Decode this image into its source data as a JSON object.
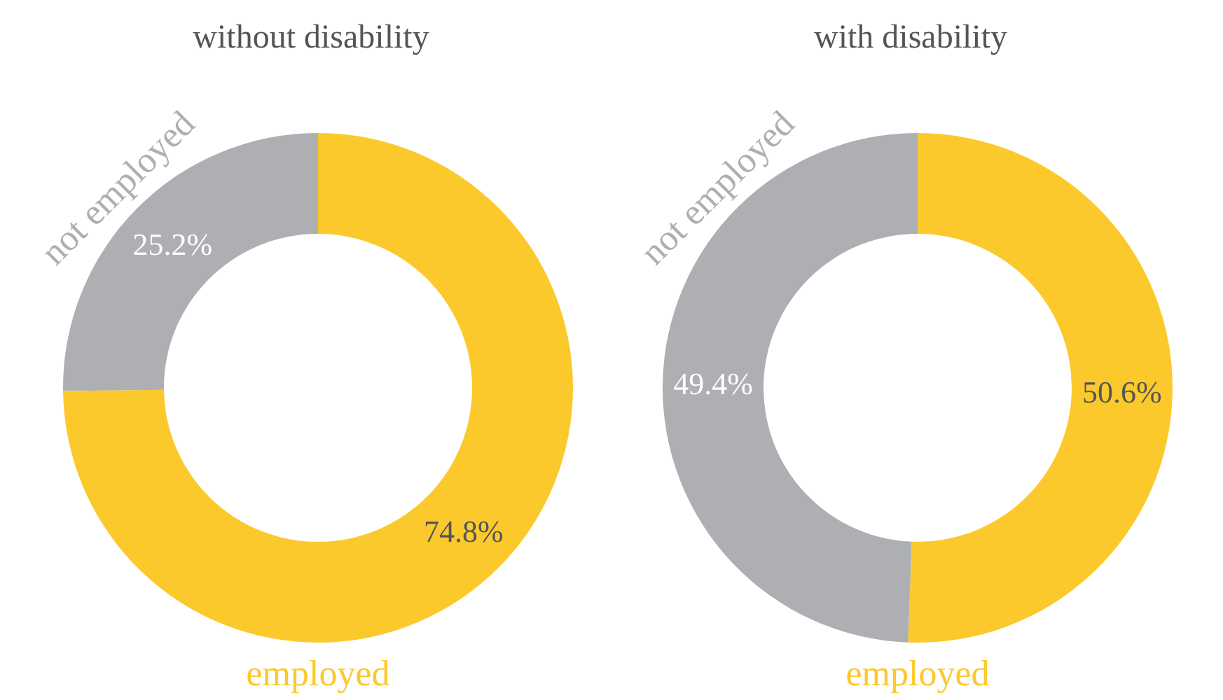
{
  "chart_data": [
    {
      "type": "donut",
      "title": "without disability",
      "categories": [
        "employed",
        "not employed"
      ],
      "values": [
        74.8,
        25.2
      ],
      "colors": [
        "#fcc92c",
        "#aeafb3"
      ],
      "value_labels": [
        "74.8%",
        "25.2%"
      ],
      "legend": false
    },
    {
      "type": "donut",
      "title": "with disability",
      "categories": [
        "employed",
        "not employed"
      ],
      "values": [
        50.6,
        49.4
      ],
      "colors": [
        "#fcc92c",
        "#aeafb3"
      ],
      "value_labels": [
        "50.6%",
        "49.4%"
      ],
      "legend": false
    }
  ]
}
